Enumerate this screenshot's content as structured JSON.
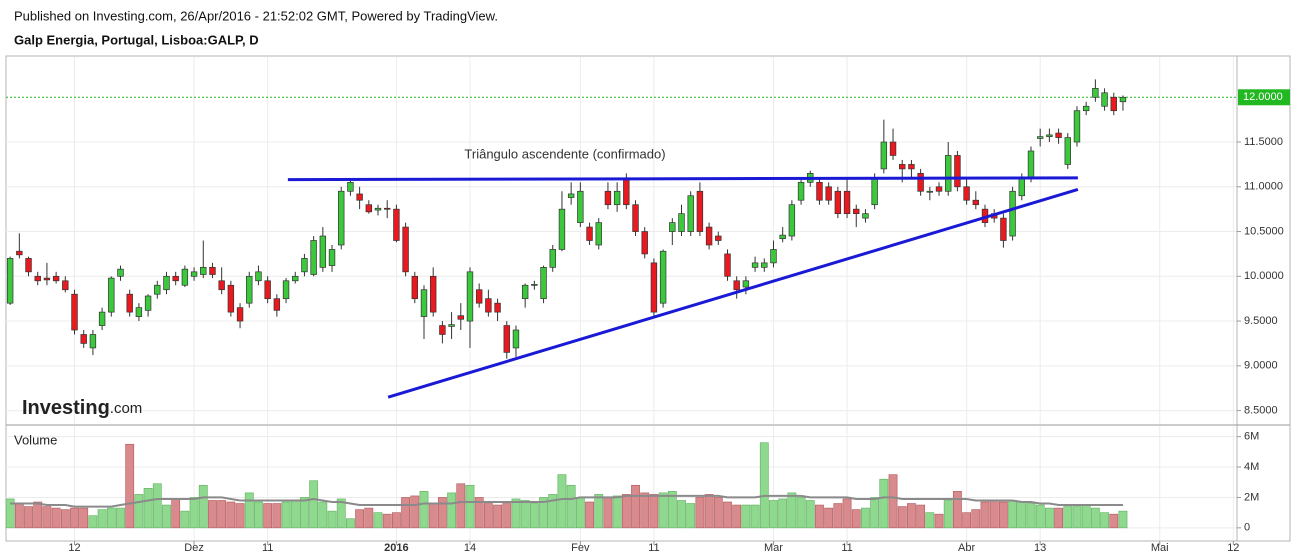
{
  "chart_data": {
    "type": "candlestick",
    "subtitle": "Published on Investing.com, 26/Apr/2016 - 21:52:02 GMT, Powered by TradingView.",
    "title": "Galp Energia, Portugal, Lisboa:GALP, D",
    "watermark": [
      "Investing",
      ".com"
    ],
    "annotation": "Triângulo ascendente (confirmado)",
    "volume_label": "Volume",
    "up_color": "#3cc83c",
    "down_color": "#e8191f",
    "volume_up_color": "#8fd98f",
    "volume_down_color": "#d98a8c",
    "grid": true,
    "xlim": [
      -0.45,
      133.4
    ],
    "xticks": [
      {
        "value": 7,
        "label": "12"
      },
      {
        "value": 20,
        "label": "Dez"
      },
      {
        "value": 28,
        "label": "11"
      },
      {
        "value": 42,
        "label": "2016"
      },
      {
        "value": 50,
        "label": "14"
      },
      {
        "value": 62,
        "label": "Fev"
      },
      {
        "value": 70,
        "label": "11"
      },
      {
        "value": 83,
        "label": "Mar"
      },
      {
        "value": 91,
        "label": "11"
      },
      {
        "value": 104,
        "label": "Abr"
      },
      {
        "value": 112,
        "label": "13"
      },
      {
        "value": 125,
        "label": "Mai"
      },
      {
        "value": 133,
        "label": "12"
      }
    ],
    "ylim": [
      8.35,
      12.45
    ],
    "yticks": [
      {
        "value": 8.5,
        "label": "8.5000"
      },
      {
        "value": 9,
        "label": "9.0000"
      },
      {
        "value": 9.5,
        "label": "9.5000"
      },
      {
        "value": 10,
        "label": "10.0000"
      },
      {
        "value": 10.5,
        "label": "10.5000"
      },
      {
        "value": 11,
        "label": "11.0000"
      },
      {
        "value": 11.5,
        "label": "11.5000"
      }
    ],
    "last_price": {
      "value": 12,
      "label": "12.0000",
      "color": "#22b822"
    },
    "volume_ylim": [
      -0.8,
      6.7
    ],
    "volume_yticks": [
      0,
      {
        "value": 2,
        "label": "2M"
      },
      {
        "value": 4,
        "label": "4M"
      },
      {
        "value": 6,
        "label": "6M"
      }
    ],
    "open": [
      9.7,
      10.28,
      10.2,
      10.0,
      9.98,
      10.0,
      9.95,
      9.8,
      9.35,
      9.2,
      9.45,
      9.6,
      10.0,
      9.8,
      9.55,
      9.62,
      9.8,
      9.85,
      10.0,
      9.9,
      10.0,
      10.02,
      10.1,
      9.95,
      9.9,
      9.65,
      9.7,
      9.95,
      9.95,
      9.75,
      9.75,
      9.95,
      10.05,
      10.02,
      10.1,
      10.12,
      10.35,
      10.95,
      10.92,
      10.8,
      10.74,
      10.76,
      10.75,
      10.55,
      10.0,
      9.55,
      10.0,
      9.45,
      9.44,
      9.56,
      9.5,
      9.85,
      9.75,
      9.7,
      9.45,
      9.2,
      9.75,
      9.9,
      9.75,
      10.1,
      10.3,
      10.88,
      10.6,
      10.55,
      10.35,
      10.95,
      10.8,
      11.1,
      10.8,
      10.5,
      10.15,
      9.7,
      10.5,
      10.5,
      10.5,
      10.95,
      10.55,
      10.45,
      10.25,
      9.95,
      9.88,
      10.1,
      10.1,
      10.15,
      10.42,
      10.45,
      10.85,
      11.05,
      11.05,
      11.0,
      10.95,
      10.95,
      10.75,
      10.65,
      10.8,
      11.2,
      11.5,
      11.25,
      11.25,
      11.15,
      10.94,
      11.0,
      10.95,
      11.35,
      11.0,
      10.85,
      10.75,
      10.7,
      10.65,
      10.45,
      10.9,
      11.1,
      11.54,
      11.56,
      11.6,
      11.25,
      11.5,
      11.85,
      12.0,
      11.9,
      12.0,
      11.95
    ],
    "high": [
      10.22,
      10.48,
      10.22,
      10.05,
      10.15,
      10.05,
      10.0,
      9.85,
      9.4,
      9.4,
      9.65,
      10.0,
      10.12,
      9.85,
      9.7,
      9.8,
      9.95,
      10.05,
      10.05,
      10.12,
      10.1,
      10.4,
      10.15,
      10.1,
      9.95,
      9.7,
      10.05,
      10.12,
      10.0,
      9.8,
      9.98,
      10.05,
      10.25,
      10.45,
      10.55,
      10.35,
      11.0,
      11.08,
      11.0,
      10.85,
      10.8,
      10.85,
      10.8,
      10.6,
      10.05,
      9.9,
      10.1,
      9.5,
      9.6,
      9.7,
      10.1,
      9.92,
      9.85,
      9.75,
      9.5,
      9.45,
      9.92,
      9.95,
      10.12,
      10.35,
      10.95,
      11.05,
      11.05,
      10.6,
      10.65,
      11.05,
      11.05,
      11.15,
      10.85,
      10.55,
      10.2,
      10.3,
      10.65,
      10.8,
      10.95,
      11.05,
      10.6,
      10.5,
      10.3,
      10.0,
      10.0,
      10.22,
      10.2,
      10.4,
      10.55,
      10.85,
      11.1,
      11.18,
      11.1,
      11.05,
      11.0,
      11.1,
      10.8,
      10.75,
      11.15,
      11.75,
      11.65,
      11.3,
      11.3,
      11.2,
      11.0,
      11.05,
      11.5,
      11.4,
      11.1,
      10.95,
      10.8,
      10.75,
      10.7,
      11.0,
      11.15,
      11.45,
      11.65,
      11.65,
      11.65,
      11.6,
      11.9,
      11.95,
      12.2,
      12.1,
      12.05,
      12.02
    ],
    "low": [
      9.68,
      10.2,
      10.0,
      9.9,
      9.9,
      9.92,
      9.82,
      9.35,
      9.2,
      9.12,
      9.4,
      9.55,
      9.95,
      9.55,
      9.5,
      9.55,
      9.75,
      9.8,
      9.9,
      9.88,
      9.95,
      9.98,
      9.98,
      9.8,
      9.55,
      9.42,
      9.65,
      9.9,
      9.7,
      9.55,
      9.7,
      9.92,
      10.0,
      10.0,
      10.05,
      10.05,
      10.3,
      10.9,
      10.75,
      10.7,
      10.68,
      10.65,
      10.38,
      10.0,
      9.7,
      9.3,
      9.55,
      9.25,
      9.3,
      9.4,
      9.2,
      9.65,
      9.55,
      9.5,
      9.08,
      9.1,
      9.65,
      9.85,
      9.7,
      10.05,
      10.28,
      10.8,
      10.55,
      10.35,
      10.3,
      10.75,
      10.72,
      10.75,
      10.45,
      10.2,
      9.55,
      9.65,
      10.35,
      10.45,
      10.45,
      10.45,
      10.3,
      10.35,
      9.95,
      9.75,
      9.8,
      10.05,
      10.05,
      10.1,
      10.38,
      10.4,
      10.8,
      11.0,
      10.8,
      10.8,
      10.65,
      10.65,
      10.55,
      10.6,
      10.75,
      11.15,
      11.3,
      11.05,
      11.1,
      10.9,
      10.85,
      10.9,
      10.9,
      10.95,
      10.8,
      10.75,
      10.55,
      10.6,
      10.32,
      10.4,
      10.85,
      11.05,
      11.45,
      11.5,
      11.48,
      11.2,
      11.45,
      11.8,
      11.95,
      11.85,
      11.8,
      11.85
    ],
    "close": [
      10.2,
      10.24,
      10.05,
      9.95,
      9.96,
      9.95,
      9.85,
      9.4,
      9.25,
      9.35,
      9.6,
      9.98,
      10.08,
      9.6,
      9.65,
      9.78,
      9.9,
      10.0,
      9.95,
      10.08,
      10.05,
      10.1,
      10.02,
      9.85,
      9.6,
      9.5,
      10.0,
      10.05,
      9.75,
      9.62,
      9.95,
      10.0,
      10.2,
      10.4,
      10.45,
      10.3,
      10.95,
      11.05,
      10.85,
      10.72,
      10.76,
      10.75,
      10.4,
      10.05,
      9.75,
      9.85,
      9.6,
      9.35,
      9.46,
      9.52,
      10.05,
      9.7,
      9.6,
      9.6,
      9.15,
      9.4,
      9.9,
      9.91,
      10.1,
      10.3,
      10.75,
      10.92,
      10.95,
      10.4,
      10.6,
      10.8,
      10.95,
      10.8,
      10.5,
      10.25,
      9.6,
      10.28,
      10.6,
      10.7,
      10.9,
      10.5,
      10.35,
      10.4,
      10.0,
      9.85,
      9.95,
      10.15,
      10.15,
      10.3,
      10.46,
      10.8,
      11.05,
      11.15,
      10.85,
      10.85,
      10.7,
      10.7,
      10.7,
      10.7,
      11.1,
      11.5,
      11.35,
      11.2,
      11.2,
      10.95,
      10.95,
      10.95,
      11.35,
      11.0,
      10.85,
      10.8,
      10.6,
      10.65,
      10.4,
      10.95,
      11.1,
      11.4,
      11.56,
      11.58,
      11.55,
      11.55,
      11.85,
      11.9,
      12.1,
      12.05,
      11.85,
      12.0
    ],
    "volume": [
      1.9,
      1.6,
      1.4,
      1.7,
      1.4,
      1.3,
      1.2,
      1.3,
      1.3,
      0.8,
      1.2,
      1.3,
      1.3,
      5.5,
      2.2,
      2.6,
      2.9,
      1.5,
      1.9,
      1.1,
      2.0,
      2.8,
      1.8,
      1.8,
      1.7,
      1.6,
      2.3,
      1.7,
      1.6,
      1.6,
      1.7,
      1.8,
      2.0,
      3.1,
      1.7,
      1.1,
      1.9,
      0.6,
      1.2,
      1.3,
      1.0,
      0.9,
      1.0,
      2.0,
      2.1,
      2.4,
      1.6,
      2.0,
      2.3,
      2.9,
      2.8,
      2.0,
      1.6,
      1.5,
      1.6,
      1.9,
      1.8,
      1.6,
      2.0,
      2.2,
      3.5,
      2.8,
      2.0,
      1.7,
      2.2,
      2.0,
      2.1,
      2.2,
      2.8,
      2.3,
      2.2,
      2.3,
      2.4,
      1.8,
      1.6,
      2.0,
      2.2,
      2.0,
      1.7,
      1.5,
      1.5,
      1.5,
      5.6,
      1.8,
      1.9,
      2.3,
      2.0,
      1.8,
      1.5,
      1.3,
      1.6,
      1.9,
      1.2,
      1.3,
      2.0,
      3.2,
      3.5,
      1.4,
      1.6,
      1.5,
      1.0,
      0.9,
      1.8,
      2.4,
      1.0,
      1.2,
      1.7,
      1.8,
      1.7,
      1.8,
      1.7,
      1.6,
      1.5,
      1.3,
      1.3,
      1.4,
      1.4,
      1.5,
      1.3,
      1.0,
      0.9,
      1.1
    ],
    "volume_ma": {
      "color": "#8a8a8a",
      "values": [
        1.6,
        1.6,
        1.6,
        1.6,
        1.5,
        1.5,
        1.5,
        1.4,
        1.4,
        1.4,
        1.4,
        1.4,
        1.5,
        1.6,
        1.7,
        1.8,
        1.9,
        1.9,
        1.9,
        1.9,
        1.9,
        2.0,
        2.0,
        2.0,
        1.9,
        1.8,
        1.8,
        1.8,
        1.8,
        1.8,
        1.8,
        1.8,
        1.8,
        1.9,
        1.8,
        1.7,
        1.7,
        1.6,
        1.5,
        1.5,
        1.5,
        1.5,
        1.5,
        1.5,
        1.5,
        1.6,
        1.6,
        1.6,
        1.6,
        1.7,
        1.7,
        1.7,
        1.7,
        1.7,
        1.7,
        1.7,
        1.7,
        1.7,
        1.7,
        1.8,
        1.9,
        1.9,
        2.0,
        2.0,
        2.0,
        2.0,
        2.0,
        2.1,
        2.1,
        2.1,
        2.1,
        2.1,
        2.1,
        2.1,
        2.1,
        2.1,
        2.1,
        2.1,
        2.0,
        2.0,
        2.0,
        2.0,
        2.1,
        2.1,
        2.1,
        2.1,
        2.1,
        2.0,
        2.0,
        2.0,
        2.0,
        2.0,
        1.9,
        1.9,
        1.9,
        2.0,
        2.0,
        1.9,
        1.9,
        1.9,
        1.9,
        1.9,
        1.9,
        1.9,
        1.9,
        1.8,
        1.8,
        1.8,
        1.8,
        1.8,
        1.7,
        1.7,
        1.6,
        1.6,
        1.5,
        1.5,
        1.5,
        1.5,
        1.5,
        1.5,
        1.5,
        1.5
      ]
    },
    "trendlines": [
      {
        "color": "#1a1ad6",
        "x": [
          30.2,
          116.1
        ],
        "y": [
          11.08,
          11.1
        ]
      },
      {
        "color": "#1a1ad6",
        "x": [
          41.1,
          116.1
        ],
        "y": [
          8.65,
          10.97
        ]
      }
    ]
  }
}
